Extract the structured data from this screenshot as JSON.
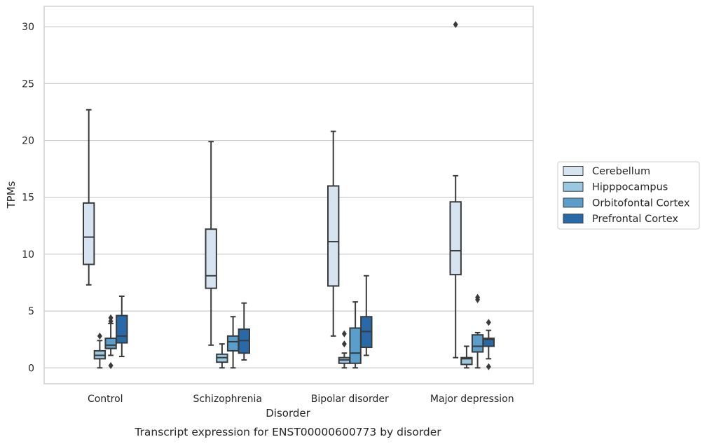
{
  "chart_data": {
    "type": "box",
    "title": "",
    "caption": "Transcript expression for ENST00000600773 by disorder",
    "xlabel": "Disorder",
    "ylabel": "TPMs",
    "ylim": [
      -1.4,
      31.8
    ],
    "yticks": [
      0,
      5,
      10,
      15,
      20,
      25,
      30
    ],
    "grid": "horizontal",
    "legend_position": "right",
    "categories": [
      "Control",
      "Schizophrenia",
      "Bipolar disorder",
      "Major depression"
    ],
    "series": [
      {
        "name": "Cerebellum",
        "color": "#d6e4f2",
        "boxes": [
          {
            "min": 7.3,
            "q1": 9.1,
            "median": 11.5,
            "q3": 14.5,
            "max": 22.7,
            "outliers": []
          },
          {
            "min": 2.0,
            "q1": 7.0,
            "median": 8.1,
            "q3": 12.2,
            "max": 19.9,
            "outliers": []
          },
          {
            "min": 2.8,
            "q1": 7.2,
            "median": 11.1,
            "q3": 16.0,
            "max": 20.8,
            "outliers": []
          },
          {
            "min": 0.9,
            "q1": 8.2,
            "median": 10.3,
            "q3": 14.6,
            "max": 16.9,
            "outliers": [
              30.2
            ]
          }
        ]
      },
      {
        "name": "Hipppocampus",
        "color": "#9ac8e0",
        "boxes": [
          {
            "min": 0.0,
            "q1": 0.8,
            "median": 1.1,
            "q3": 1.5,
            "max": 2.4,
            "outliers": [
              2.8
            ]
          },
          {
            "min": 0.0,
            "q1": 0.5,
            "median": 0.9,
            "q3": 1.2,
            "max": 2.1,
            "outliers": []
          },
          {
            "min": 0.0,
            "q1": 0.4,
            "median": 0.7,
            "q3": 0.9,
            "max": 1.3,
            "outliers": [
              2.1,
              3.0
            ]
          },
          {
            "min": 0.0,
            "q1": 0.3,
            "median": 0.8,
            "q3": 0.9,
            "max": 1.9,
            "outliers": []
          }
        ]
      },
      {
        "name": "Orbitofontal Cortex",
        "color": "#5a9fcc",
        "boxes": [
          {
            "min": 1.1,
            "q1": 1.7,
            "median": 2.0,
            "q3": 2.6,
            "max": 3.9,
            "outliers": [
              4.1,
              4.4,
              0.2
            ]
          },
          {
            "min": 0.0,
            "q1": 1.5,
            "median": 2.3,
            "q3": 2.8,
            "max": 4.5,
            "outliers": []
          },
          {
            "min": 0.0,
            "q1": 0.4,
            "median": 1.3,
            "q3": 3.5,
            "max": 5.8,
            "outliers": []
          },
          {
            "min": 0.0,
            "q1": 1.4,
            "median": 1.9,
            "q3": 2.9,
            "max": 3.1,
            "outliers": [
              6.0,
              6.2
            ]
          }
        ]
      },
      {
        "name": "Prefrontal Cortex",
        "color": "#2869a8",
        "boxes": [
          {
            "min": 1.0,
            "q1": 2.2,
            "median": 2.8,
            "q3": 4.6,
            "max": 6.3,
            "outliers": []
          },
          {
            "min": 0.7,
            "q1": 1.3,
            "median": 2.4,
            "q3": 3.4,
            "max": 5.7,
            "outliers": []
          },
          {
            "min": 1.1,
            "q1": 1.8,
            "median": 3.2,
            "q3": 4.5,
            "max": 8.1,
            "outliers": []
          },
          {
            "min": 0.8,
            "q1": 1.9,
            "median": 2.5,
            "q3": 2.6,
            "max": 3.3,
            "outliers": [
              4.0,
              0.1
            ]
          }
        ]
      }
    ]
  }
}
